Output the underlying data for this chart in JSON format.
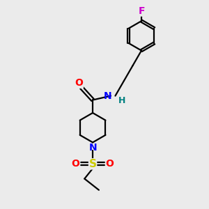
{
  "bg_color": "#ebebeb",
  "bond_color": "#000000",
  "bond_width": 1.6,
  "atom_colors": {
    "O": "#ff0000",
    "N": "#0000ff",
    "S": "#cccc00",
    "F": "#cc00cc",
    "H": "#008080"
  },
  "figsize": [
    3.0,
    3.0
  ],
  "dpi": 100
}
